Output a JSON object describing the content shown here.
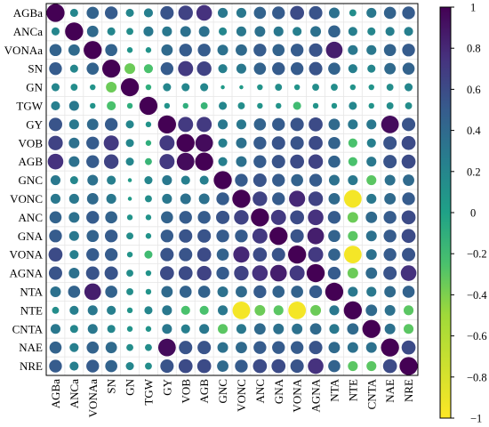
{
  "chart_data": {
    "type": "heatmap",
    "subtype": "correlation-bubble-matrix",
    "title": "",
    "variables": [
      "AGBa",
      "ANCa",
      "VONAa",
      "SN",
      "GN",
      "TGW",
      "GY",
      "VOB",
      "AGB",
      "GNC",
      "VONC",
      "ANC",
      "GNA",
      "VONA",
      "AGNA",
      "NTA",
      "NTE",
      "CNTA",
      "NAE",
      "NRE"
    ],
    "matrix": [
      [
        1.0,
        0.2,
        0.45,
        0.5,
        0.2,
        0.25,
        0.55,
        0.65,
        0.75,
        0.3,
        0.3,
        0.45,
        0.5,
        0.6,
        0.55,
        0.35,
        0.15,
        0.3,
        0.45,
        0.5
      ],
      [
        0.2,
        1.0,
        0.4,
        0.2,
        0.15,
        0.3,
        0.3,
        0.35,
        0.35,
        0.2,
        0.3,
        0.35,
        0.3,
        0.25,
        0.35,
        0.45,
        0.25,
        0.2,
        0.25,
        0.25
      ],
      [
        0.45,
        0.4,
        1.0,
        0.45,
        0.1,
        0.1,
        0.4,
        0.5,
        0.5,
        0.35,
        0.4,
        0.5,
        0.45,
        0.5,
        0.55,
        0.85,
        0.3,
        0.3,
        0.45,
        0.5
      ],
      [
        0.5,
        0.2,
        0.45,
        1.0,
        -0.35,
        -0.25,
        0.5,
        0.7,
        0.65,
        0.25,
        0.3,
        0.45,
        0.5,
        0.5,
        0.55,
        0.45,
        0.25,
        0.2,
        0.4,
        0.45
      ],
      [
        0.2,
        0.15,
        0.1,
        -0.35,
        1.0,
        -0.1,
        0.2,
        0.2,
        0.2,
        0.05,
        0.05,
        0.1,
        0.15,
        0.1,
        0.15,
        0.15,
        0.1,
        0.1,
        0.15,
        0.2
      ],
      [
        0.25,
        0.3,
        0.1,
        -0.25,
        -0.1,
        1.0,
        0.1,
        -0.1,
        -0.15,
        0.2,
        0.15,
        0.1,
        0.1,
        -0.2,
        0.1,
        0.1,
        0.2,
        0.1,
        0.15,
        0.15
      ],
      [
        0.55,
        0.3,
        0.4,
        0.5,
        0.2,
        0.1,
        1.0,
        0.7,
        0.7,
        0.3,
        0.3,
        0.45,
        0.5,
        0.55,
        0.6,
        0.4,
        0.3,
        0.3,
        0.95,
        0.55
      ],
      [
        0.65,
        0.35,
        0.5,
        0.7,
        0.2,
        -0.1,
        0.7,
        1.0,
        0.95,
        0.25,
        0.35,
        0.5,
        0.55,
        0.55,
        0.6,
        0.45,
        -0.25,
        0.25,
        0.55,
        0.6
      ],
      [
        0.75,
        0.35,
        0.5,
        0.65,
        0.2,
        -0.15,
        0.7,
        0.95,
        1.0,
        0.25,
        0.35,
        0.5,
        0.55,
        0.6,
        0.65,
        0.45,
        -0.25,
        0.3,
        0.55,
        0.6
      ],
      [
        0.3,
        0.2,
        0.35,
        0.25,
        0.05,
        0.2,
        0.3,
        0.25,
        0.25,
        1.0,
        0.5,
        0.55,
        0.5,
        0.45,
        0.5,
        0.35,
        0.3,
        -0.3,
        0.35,
        0.4
      ],
      [
        0.3,
        0.3,
        0.4,
        0.3,
        0.05,
        0.15,
        0.3,
        0.35,
        0.35,
        0.5,
        1.0,
        0.65,
        0.5,
        0.8,
        0.65,
        0.4,
        -0.95,
        0.3,
        0.4,
        0.5
      ],
      [
        0.45,
        0.35,
        0.5,
        0.45,
        0.1,
        0.1,
        0.45,
        0.5,
        0.5,
        0.55,
        0.65,
        1.0,
        0.7,
        0.6,
        0.75,
        0.5,
        -0.35,
        0.4,
        0.5,
        0.6
      ],
      [
        0.5,
        0.3,
        0.45,
        0.5,
        0.15,
        0.1,
        0.5,
        0.55,
        0.55,
        0.5,
        0.5,
        0.7,
        1.0,
        0.55,
        0.85,
        0.45,
        -0.3,
        0.35,
        0.5,
        0.6
      ],
      [
        0.6,
        0.25,
        0.5,
        0.5,
        0.1,
        -0.2,
        0.55,
        0.55,
        0.6,
        0.45,
        0.8,
        0.6,
        0.55,
        1.0,
        0.7,
        0.45,
        -0.95,
        0.35,
        0.5,
        0.55
      ],
      [
        0.55,
        0.35,
        0.55,
        0.55,
        0.15,
        0.1,
        0.6,
        0.6,
        0.65,
        0.5,
        0.65,
        0.75,
        0.85,
        0.7,
        1.0,
        0.5,
        -0.35,
        0.4,
        0.55,
        0.75
      ],
      [
        0.35,
        0.45,
        0.85,
        0.45,
        0.15,
        0.1,
        0.4,
        0.45,
        0.45,
        0.35,
        0.4,
        0.5,
        0.45,
        0.45,
        0.5,
        1.0,
        0.3,
        0.3,
        0.4,
        0.45
      ],
      [
        0.15,
        0.25,
        0.3,
        0.25,
        0.1,
        0.2,
        0.3,
        -0.25,
        -0.25,
        0.3,
        -0.95,
        -0.35,
        -0.3,
        -0.95,
        -0.35,
        0.3,
        1.0,
        0.4,
        0.35,
        -0.3
      ],
      [
        0.3,
        0.2,
        0.3,
        0.2,
        0.1,
        0.1,
        0.3,
        0.25,
        0.3,
        -0.3,
        0.3,
        0.4,
        0.35,
        0.35,
        0.4,
        0.3,
        0.4,
        1.0,
        0.35,
        -0.3
      ],
      [
        0.45,
        0.25,
        0.45,
        0.4,
        0.15,
        0.15,
        0.95,
        0.55,
        0.55,
        0.35,
        0.4,
        0.5,
        0.5,
        0.5,
        0.55,
        0.4,
        0.35,
        0.35,
        1.0,
        0.6
      ],
      [
        0.5,
        0.25,
        0.5,
        0.45,
        0.2,
        0.15,
        0.55,
        0.6,
        0.6,
        0.4,
        0.5,
        0.6,
        0.6,
        0.55,
        0.75,
        0.45,
        -0.3,
        -0.3,
        0.6,
        1.0
      ]
    ],
    "colorbar": {
      "range": [
        -1,
        1
      ],
      "ticks": [
        "1",
        "0.8",
        "0.6",
        "0.4",
        "0.2",
        "0",
        "−0.2",
        "−0.4",
        "−0.6",
        "−0.8",
        "−1"
      ],
      "colors": [
        "#f2e51d",
        "#21918c",
        "#440154"
      ]
    },
    "encoding": "circle area and color both scale with correlation value",
    "grid": true
  }
}
